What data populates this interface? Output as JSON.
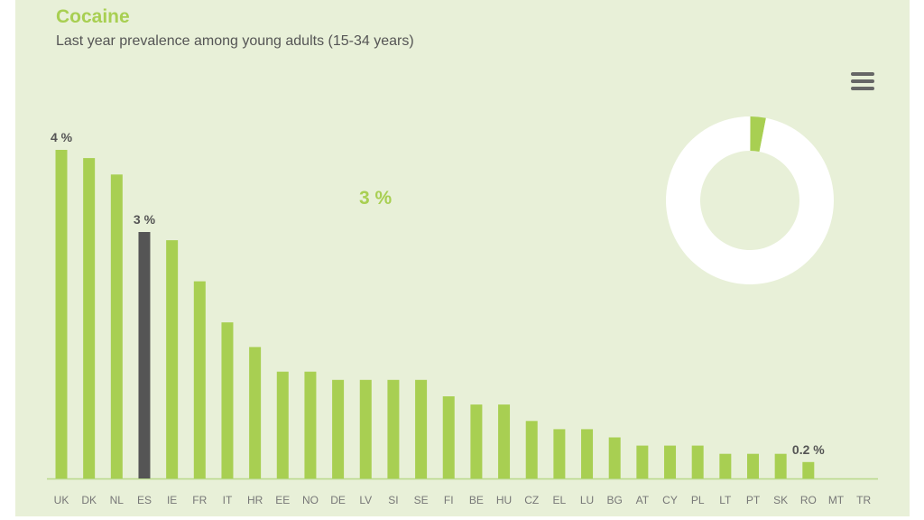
{
  "title": "Cocaine",
  "subtitle": "Last year prevalence among young adults (15-34 years)",
  "menu_icon": "hamburger-menu-icon",
  "highlight_value": "3 %",
  "colors": {
    "bar": "#a8cf52",
    "highlight": "#555555",
    "background": "#e8f0d8",
    "donut_rest": "#ffffff"
  },
  "chart_data": [
    {
      "type": "bar",
      "title": "Cocaine",
      "subtitle": "Last year prevalence among young adults (15-34 years)",
      "xlabel": "",
      "ylabel": "%",
      "ylim": [
        0,
        4
      ],
      "grid": false,
      "categories": [
        "UK",
        "DK",
        "NL",
        "ES",
        "IE",
        "FR",
        "IT",
        "HR",
        "EE",
        "NO",
        "DE",
        "LV",
        "SI",
        "SE",
        "FI",
        "BE",
        "HU",
        "CZ",
        "EL",
        "LU",
        "BG",
        "AT",
        "CY",
        "PL",
        "LT",
        "PT",
        "SK",
        "RO",
        "MT",
        "TR"
      ],
      "values": [
        4.0,
        3.9,
        3.7,
        3.0,
        2.9,
        2.4,
        1.9,
        1.6,
        1.3,
        1.3,
        1.2,
        1.2,
        1.2,
        1.2,
        1.0,
        0.9,
        0.9,
        0.7,
        0.6,
        0.6,
        0.5,
        0.4,
        0.4,
        0.4,
        0.3,
        0.3,
        0.3,
        0.2,
        0,
        0
      ],
      "highlighted": "ES",
      "data_labels": [
        {
          "category": "UK",
          "text": "4 %"
        },
        {
          "category": "ES",
          "text": "3 %"
        },
        {
          "category": "RO",
          "text": "0.2 %"
        }
      ]
    },
    {
      "type": "pie",
      "variant": "donut",
      "slices": [
        {
          "name": "ES",
          "value": 3
        },
        {
          "name": "rest",
          "value": 97
        }
      ],
      "label": "3 %"
    }
  ]
}
